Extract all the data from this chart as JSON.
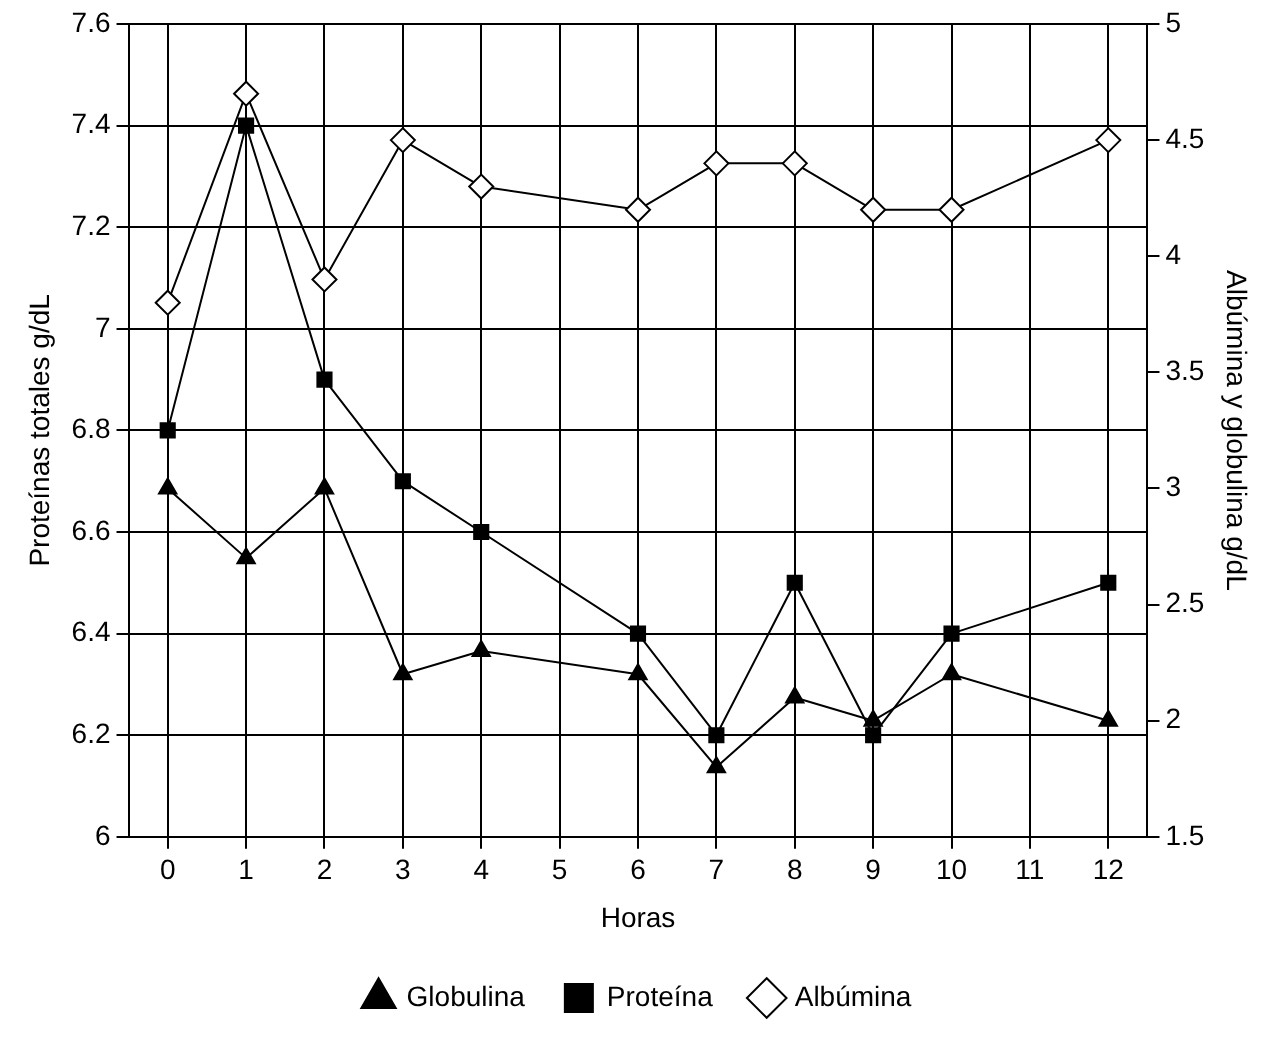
{
  "chart_data": {
    "type": "line",
    "xlabel": "Horas",
    "ylabel": "Proteínas totales g/dL",
    "y2label": "Albúmina y globulina g/dL",
    "x": [
      0,
      1,
      2,
      3,
      4,
      6,
      7,
      8,
      9,
      10,
      12
    ],
    "xlim": [
      -0.5,
      12.5
    ],
    "xticks": [
      0,
      1,
      2,
      3,
      4,
      5,
      6,
      7,
      8,
      9,
      10,
      11,
      12
    ],
    "series": [
      {
        "name": "Globulina",
        "color": "#000000",
        "axis": "y2",
        "marker": "triangle",
        "values": [
          3.0,
          2.7,
          3.0,
          2.2,
          2.3,
          2.2,
          1.8,
          2.1,
          2.0,
          2.2,
          2.0
        ]
      },
      {
        "name": "Proteína",
        "color": "#000000",
        "axis": "y",
        "marker": "square",
        "values": [
          6.8,
          7.4,
          6.9,
          6.7,
          6.6,
          6.4,
          6.2,
          6.5,
          6.2,
          6.4,
          6.5
        ]
      },
      {
        "name": "Albúmina",
        "color": "#000000",
        "axis": "y2",
        "marker": "diamond",
        "values": [
          3.8,
          4.7,
          3.9,
          4.5,
          4.3,
          4.2,
          4.4,
          4.4,
          4.2,
          4.2,
          4.5
        ]
      }
    ],
    "ylim": [
      6,
      7.6
    ],
    "yticks": [
      6,
      6.2,
      6.4,
      6.6,
      6.8,
      7,
      7.2,
      7.4,
      7.6
    ],
    "y2lim": [
      1.5,
      5
    ],
    "y2ticks": [
      1.5,
      2,
      2.5,
      3,
      3.5,
      4,
      4.5,
      5
    ],
    "grid": true,
    "legend": "bottom",
    "line_style": "solid"
  }
}
